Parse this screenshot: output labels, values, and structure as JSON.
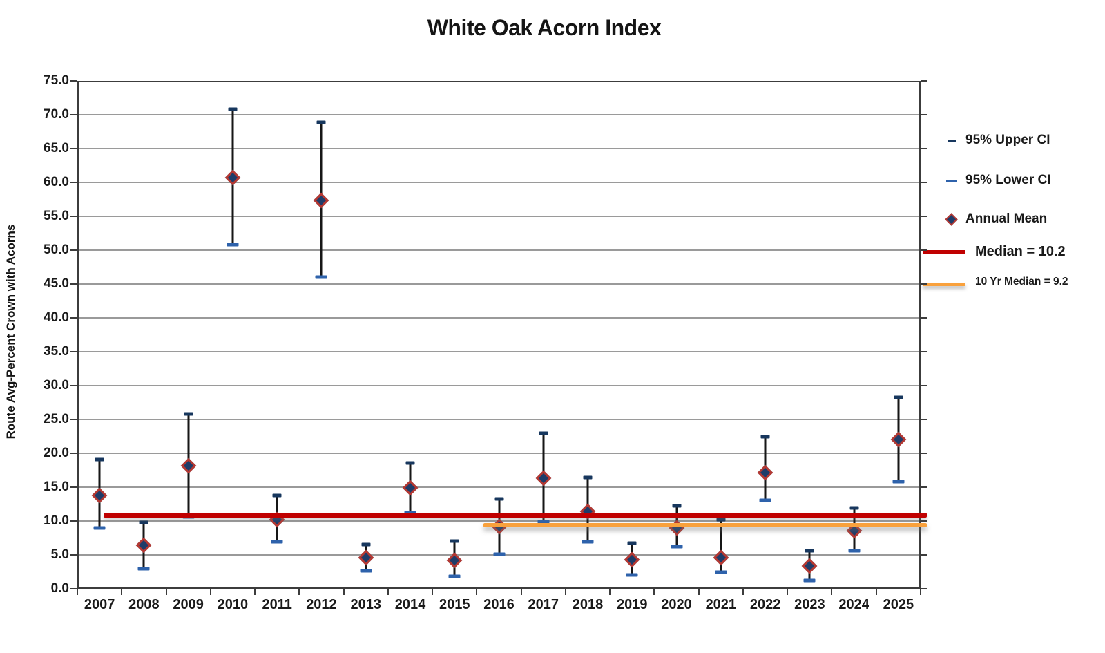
{
  "title": "White Oak Acorn Index",
  "y_axis": {
    "label": "Route Avg-Percent Crown with Acorns",
    "tick_labels": [
      "75.0",
      "70.0",
      "65.0",
      "60.0",
      "55.0",
      "50.0",
      "45.0",
      "40.0",
      "35.0",
      "30.0",
      "25.0",
      "20.0",
      "15.0",
      "10.0",
      "5.0",
      "0.0"
    ]
  },
  "x_axis": {
    "tick_labels": [
      "2007",
      "2008",
      "2009",
      "2010",
      "2011",
      "2012",
      "2013",
      "2014",
      "2015",
      "2016",
      "2017",
      "2018",
      "2019",
      "2020",
      "2021",
      "2022",
      "2023",
      "2024",
      "2025"
    ]
  },
  "legend": [
    {
      "label": "95% Upper CI",
      "marker": "dash",
      "color": "#17375e"
    },
    {
      "label": "95% Lower CI",
      "marker": "dash",
      "color": "#2e62ab"
    },
    {
      "label": "Annual Mean",
      "marker": "diamond",
      "color": "#1e3c69",
      "border": "#b43832"
    },
    {
      "label": "Median = 10.2",
      "marker": "line",
      "color": "#c00000"
    },
    {
      "label": "10 Yr Median = 9.2",
      "marker": "line",
      "color": "#f9a13c"
    }
  ],
  "colors": {
    "upper_cap": "#17375e",
    "lower_cap": "#2e62ab",
    "error_line": "#161616",
    "diamond_fill": "#1e3c69",
    "diamond_border": "#b43832",
    "median": "#c00000",
    "ten_yr_median": "#f9a13c",
    "gridline": "#9a9a9a",
    "background": "#ffffff"
  },
  "chart_data": {
    "type": "scatter",
    "title": "White Oak Acorn Index",
    "xlabel": "",
    "ylabel": "Route Avg-Percent Crown with Acorns",
    "ylim": [
      0,
      75
    ],
    "ytick_step": 5,
    "grid": true,
    "legend_position": "right",
    "categories": [
      2007,
      2008,
      2009,
      2010,
      2011,
      2012,
      2013,
      2014,
      2015,
      2016,
      2017,
      2018,
      2019,
      2020,
      2021,
      2022,
      2023,
      2024,
      2025
    ],
    "series": [
      {
        "name": "Annual Mean",
        "values": [
          13.8,
          6.4,
          18.2,
          60.7,
          10.2,
          57.3,
          4.6,
          14.9,
          4.2,
          9.2,
          16.3,
          11.4,
          4.3,
          9.0,
          4.6,
          17.1,
          3.4,
          8.6,
          22.0
        ]
      },
      {
        "name": "95% Upper CI",
        "values": [
          19.1,
          9.8,
          25.8,
          70.8,
          13.8,
          68.9,
          6.5,
          18.6,
          7.0,
          13.3,
          23.0,
          16.4,
          6.7,
          12.2,
          10.2,
          22.5,
          5.6,
          11.9,
          28.3
        ]
      },
      {
        "name": "95% Lower CI",
        "values": [
          9.0,
          3.0,
          10.6,
          50.8,
          6.9,
          46.0,
          2.7,
          11.2,
          1.8,
          5.1,
          9.9,
          6.9,
          2.0,
          6.2,
          2.4,
          13.1,
          1.2,
          5.6,
          15.8
        ]
      }
    ],
    "reference_lines": [
      {
        "name": "Median",
        "label": "Median = 10.2",
        "value": 10.2,
        "span_years": [
          2007,
          2025
        ]
      },
      {
        "name": "10 Yr Median",
        "label": "10 Yr Median = 9.2",
        "value": 9.2,
        "span_years": [
          2016,
          2025
        ]
      }
    ]
  }
}
